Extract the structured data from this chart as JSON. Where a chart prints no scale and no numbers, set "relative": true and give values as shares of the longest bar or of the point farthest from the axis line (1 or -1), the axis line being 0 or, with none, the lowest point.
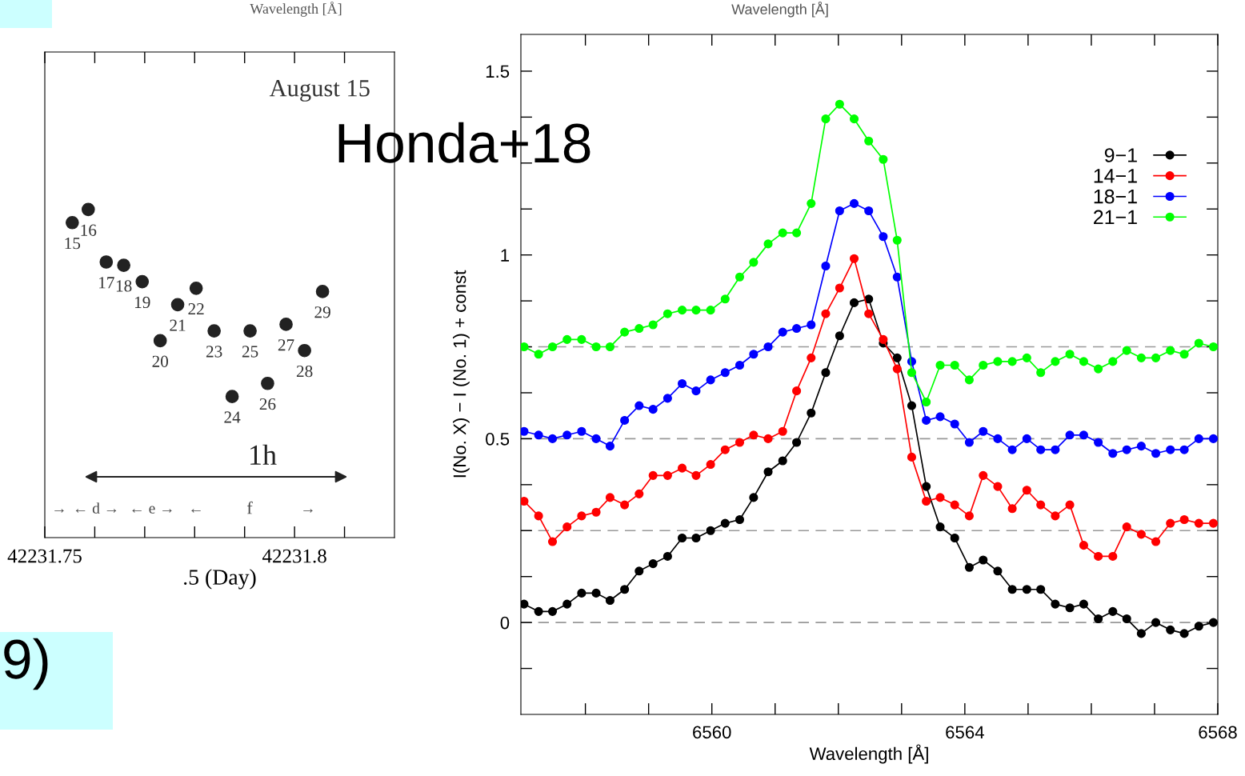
{
  "chart_data": [
    {
      "type": "scatter",
      "relative": true,
      "xlabel": ".5 (Day)",
      "color": "#222222",
      "marker": "circle",
      "x": [
        42231.7555,
        42231.7587,
        42231.7623,
        42231.7658,
        42231.7695,
        42231.7731,
        42231.7766,
        42231.7803,
        42231.7839,
        42231.7875,
        42231.7911,
        42231.7946,
        42231.7983,
        42231.802,
        42231.8056
      ],
      "values": [
        0.96,
        1,
        0.84,
        0.83,
        0.78,
        0.6,
        0.71,
        0.76,
        0.63,
        0.43,
        0.63,
        0.47,
        0.65,
        0.57,
        0.75
      ],
      "xlim": [
        42231.75,
        42231.82
      ],
      "xticks": [
        {
          "value": 42231.75,
          "label": "42231.75"
        },
        {
          "value": 42231.76,
          "label": null
        },
        {
          "value": 42231.77,
          "label": null
        },
        {
          "value": 42231.78,
          "label": null
        },
        {
          "value": 42231.79,
          "label": null
        },
        {
          "value": 42231.8,
          "label": "42231.8"
        },
        {
          "value": 42231.81,
          "label": null
        }
      ],
      "annotations": [
        "Wavelength [Å]",
        "August 15",
        "9)",
        "1h",
        "→",
        "← d →",
        "← e →",
        "←",
        "f",
        "→",
        {
          "text": "15",
          "x": 42231.7555,
          "y": 0.96
        },
        {
          "text": "16",
          "x": 42231.7587,
          "y": 1
        },
        {
          "text": "17",
          "x": 42231.7623,
          "y": 0.84
        },
        {
          "text": "18",
          "x": 42231.7658,
          "y": 0.83
        },
        {
          "text": "19",
          "x": 42231.7695,
          "y": 0.78
        },
        {
          "text": "20",
          "x": 42231.7731,
          "y": 0.6
        },
        {
          "text": "21",
          "x": 42231.7766,
          "y": 0.71
        },
        {
          "text": "22",
          "x": 42231.7803,
          "y": 0.76
        },
        {
          "text": "23",
          "x": 42231.7839,
          "y": 0.63
        },
        {
          "text": "24",
          "x": 42231.7875,
          "y": 0.43
        },
        {
          "text": "25",
          "x": 42231.7911,
          "y": 0.63
        },
        {
          "text": "26",
          "x": 42231.7946,
          "y": 0.47
        },
        {
          "text": "27",
          "x": 42231.7983,
          "y": 0.65
        },
        {
          "text": "28",
          "x": 42231.802,
          "y": 0.57
        },
        {
          "text": "29",
          "x": 42231.8056,
          "y": 0.75
        }
      ]
    },
    {
      "type": "line",
      "marker": "circle",
      "line_style": "solid",
      "legend": "top right",
      "grid": false,
      "xlabel": "Wavelength [Å]",
      "ylabel": "I(No. X) − I (No. 1) + const",
      "x": [
        6557.03,
        6557.26,
        6557.48,
        6557.71,
        6557.94,
        6558.17,
        6558.39,
        6558.62,
        6558.85,
        6559.07,
        6559.3,
        6559.53,
        6559.75,
        6559.98,
        6560.21,
        6560.44,
        6560.66,
        6560.89,
        6561.12,
        6561.34,
        6561.57,
        6561.8,
        6562.02,
        6562.25,
        6562.48,
        6562.71,
        6562.93,
        6563.16,
        6563.39,
        6563.61,
        6563.84,
        6564.07,
        6564.29,
        6564.52,
        6564.75,
        6564.98,
        6565.2,
        6565.43,
        6565.66,
        6565.88,
        6566.11,
        6566.34,
        6566.56,
        6566.79,
        6567.02,
        6567.25,
        6567.47,
        6567.7,
        6567.93
      ],
      "series": [
        {
          "name": "9−1",
          "color": "#000000",
          "values": [
            0.05,
            0.03,
            0.03,
            0.05,
            0.08,
            0.08,
            0.06,
            0.09,
            0.14,
            0.16,
            0.18,
            0.23,
            0.23,
            0.25,
            0.27,
            0.28,
            0.34,
            0.41,
            0.44,
            0.49,
            0.57,
            0.68,
            0.78,
            0.87,
            0.88,
            0.76,
            0.72,
            0.59,
            0.37,
            0.26,
            0.23,
            0.15,
            0.17,
            0.14,
            0.09,
            0.09,
            0.09,
            0.05,
            0.04,
            0.05,
            0.01,
            0.03,
            0.01,
            -0.03,
            0.0,
            -0.02,
            -0.03,
            -0.01,
            0.0
          ]
        },
        {
          "name": "14−1",
          "color": "#ff0000",
          "values": [
            0.33,
            0.29,
            0.22,
            0.26,
            0.29,
            0.3,
            0.34,
            0.32,
            0.35,
            0.4,
            0.4,
            0.42,
            0.4,
            0.43,
            0.47,
            0.49,
            0.51,
            0.5,
            0.52,
            0.63,
            0.72,
            0.84,
            0.91,
            0.99,
            0.84,
            0.77,
            0.69,
            0.45,
            0.33,
            0.34,
            0.32,
            0.29,
            0.4,
            0.37,
            0.31,
            0.36,
            0.32,
            0.29,
            0.32,
            0.21,
            0.18,
            0.18,
            0.26,
            0.24,
            0.22,
            0.27,
            0.28,
            0.27,
            0.27
          ]
        },
        {
          "name": "18−1",
          "color": "#0000ff",
          "values": [
            0.52,
            0.51,
            0.5,
            0.51,
            0.52,
            0.5,
            0.48,
            0.55,
            0.59,
            0.58,
            0.61,
            0.65,
            0.63,
            0.66,
            0.68,
            0.7,
            0.73,
            0.75,
            0.79,
            0.8,
            0.81,
            0.97,
            1.12,
            1.14,
            1.12,
            1.05,
            0.94,
            0.71,
            0.55,
            0.56,
            0.54,
            0.49,
            0.52,
            0.5,
            0.47,
            0.5,
            0.47,
            0.47,
            0.51,
            0.51,
            0.49,
            0.46,
            0.47,
            0.48,
            0.46,
            0.47,
            0.47,
            0.5,
            0.5
          ]
        },
        {
          "name": "21−1",
          "color": "#00ff00",
          "values": [
            0.75,
            0.73,
            0.75,
            0.77,
            0.77,
            0.75,
            0.75,
            0.79,
            0.8,
            0.81,
            0.84,
            0.85,
            0.85,
            0.85,
            0.88,
            0.94,
            0.98,
            1.03,
            1.06,
            1.06,
            1.14,
            1.37,
            1.41,
            1.37,
            1.31,
            1.26,
            1.04,
            0.68,
            0.6,
            0.7,
            0.7,
            0.66,
            0.7,
            0.71,
            0.71,
            0.72,
            0.68,
            0.71,
            0.73,
            0.71,
            0.69,
            0.71,
            0.74,
            0.72,
            0.72,
            0.74,
            0.73,
            0.76,
            0.75
          ]
        }
      ],
      "xlim": [
        6556.98,
        6568
      ],
      "xticks": [
        {
          "value": 6558,
          "label": null
        },
        {
          "value": 6559,
          "label": null
        },
        6560,
        {
          "value": 6561,
          "label": null
        },
        {
          "value": 6562,
          "label": null
        },
        {
          "value": 6563,
          "label": null
        },
        6564,
        {
          "value": 6565,
          "label": null
        },
        {
          "value": 6566,
          "label": null
        },
        {
          "value": 6567,
          "label": null
        },
        6568
      ],
      "ylim": [
        -0.25,
        1.6
      ],
      "yticks": [
        {
          "value": -0.125,
          "label": null
        },
        0,
        {
          "value": 0.125,
          "label": null
        },
        {
          "value": 0.25,
          "label": null
        },
        {
          "value": 0.375,
          "label": null
        },
        0.5,
        {
          "value": 0.625,
          "label": null
        },
        {
          "value": 0.75,
          "label": null
        },
        {
          "value": 0.875,
          "label": null
        },
        1,
        {
          "value": 1.125,
          "label": null
        },
        {
          "value": 1.25,
          "label": null
        },
        {
          "value": 1.375,
          "label": null
        },
        1.5
      ],
      "ref_lines": [
        {
          "axis": "y",
          "value": 0,
          "color": "#999999",
          "line_style": "dashed"
        },
        {
          "axis": "y",
          "value": 0.25,
          "color": "#999999",
          "line_style": "dashed"
        },
        {
          "axis": "y",
          "value": 0.5,
          "color": "#999999",
          "line_style": "dashed"
        },
        {
          "axis": "y",
          "value": 0.75,
          "color": "#999999",
          "line_style": "dashed"
        }
      ],
      "annotations": [
        "Wavelength [Å]",
        "Honda+18"
      ]
    }
  ]
}
